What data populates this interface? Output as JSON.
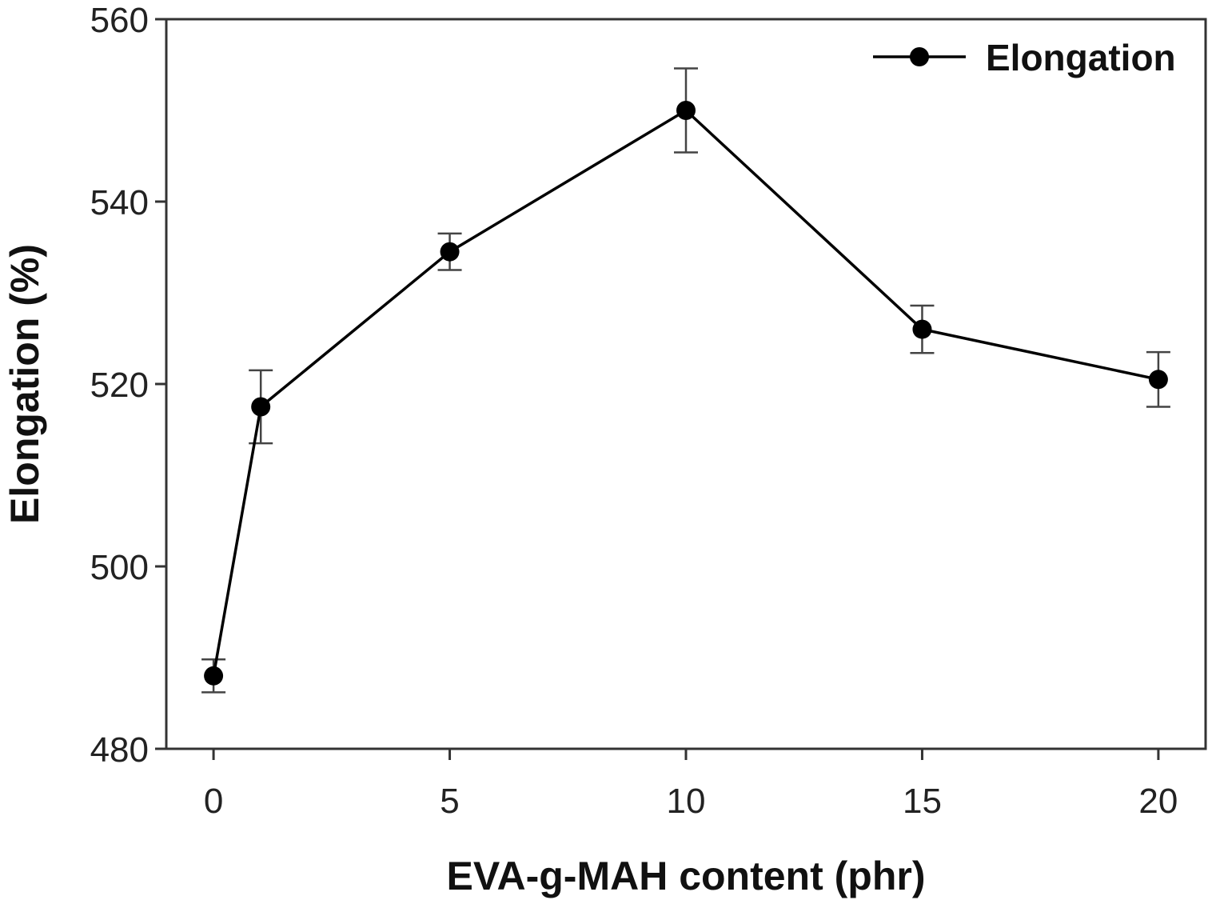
{
  "chart_data": {
    "type": "line",
    "title": "",
    "xlabel": "EVA-g-MAH content (phr)",
    "ylabel": "Elongation (%)",
    "xlim": [
      -1,
      21
    ],
    "ylim": [
      480,
      560
    ],
    "x_ticks": [
      0,
      5,
      10,
      15,
      20
    ],
    "y_ticks": [
      480,
      500,
      520,
      540,
      560
    ],
    "grid": false,
    "legend_position": "top-right",
    "series": [
      {
        "name": "Elongation",
        "color": "#000000",
        "marker": "circle",
        "x": [
          0,
          1,
          5,
          10,
          15,
          20
        ],
        "y": [
          488,
          517.5,
          534.5,
          550,
          526,
          520.5
        ],
        "error": [
          1.8,
          4,
          2,
          4.6,
          2.6,
          3
        ]
      }
    ]
  }
}
